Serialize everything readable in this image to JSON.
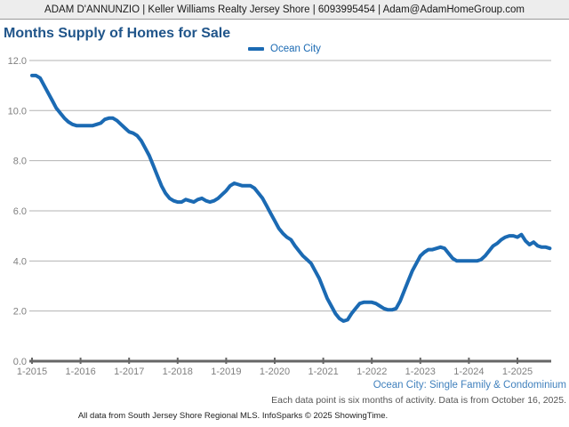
{
  "header": {
    "text": "ADAM D'ANNUNZIO | Keller Williams Realty Jersey Shore | 6093995454 | Adam@AdamHomeGroup.com"
  },
  "title": "Months Supply of Homes for Sale",
  "legend": {
    "label": "Ocean City"
  },
  "footer": {
    "series_note": "Ocean City: Single Family & Condominium",
    "data_note": "Each data point is six months of activity. Data is from October 16, 2025.",
    "attribution": "All data from South Jersey Shore Regional MLS. InfoSparks © 2025 ShowingTime."
  },
  "colors": {
    "line": "#1b6ab3",
    "title": "#20558a",
    "footer_blue": "#4181bd",
    "grid": "#b3b3b3",
    "axis": "#666666",
    "tick_label": "#808080"
  },
  "chart_data": {
    "type": "line",
    "title": "Months Supply of Homes for Sale",
    "series_name": "Ocean City",
    "x_start_month": "1-2015",
    "x_end_month": "9-2025",
    "x_tick_labels": [
      "1-2015",
      "1-2016",
      "1-2017",
      "1-2018",
      "1-2019",
      "1-2020",
      "1-2021",
      "1-2022",
      "1-2023",
      "1-2024",
      "1-2025"
    ],
    "yticks": [
      0,
      2,
      4,
      6,
      8,
      10,
      12
    ],
    "ylim": [
      0,
      12
    ],
    "grid": true,
    "legend_position": "top-center",
    "note": "monthly points, each point = six months of activity",
    "values": [
      11.4,
      11.4,
      11.3,
      11.0,
      10.7,
      10.4,
      10.1,
      9.9,
      9.7,
      9.55,
      9.45,
      9.4,
      9.4,
      9.4,
      9.4,
      9.4,
      9.45,
      9.5,
      9.65,
      9.7,
      9.7,
      9.6,
      9.45,
      9.3,
      9.15,
      9.1,
      9.0,
      8.8,
      8.5,
      8.2,
      7.8,
      7.4,
      7.0,
      6.7,
      6.5,
      6.4,
      6.35,
      6.35,
      6.45,
      6.4,
      6.35,
      6.45,
      6.5,
      6.4,
      6.35,
      6.4,
      6.5,
      6.65,
      6.8,
      7.0,
      7.1,
      7.05,
      7.0,
      7.0,
      7.0,
      6.9,
      6.7,
      6.5,
      6.2,
      5.9,
      5.6,
      5.3,
      5.1,
      4.95,
      4.85,
      4.6,
      4.4,
      4.2,
      4.05,
      3.9,
      3.6,
      3.3,
      2.9,
      2.5,
      2.2,
      1.9,
      1.7,
      1.6,
      1.65,
      1.9,
      2.1,
      2.3,
      2.35,
      2.35,
      2.35,
      2.3,
      2.2,
      2.1,
      2.05,
      2.05,
      2.1,
      2.4,
      2.8,
      3.2,
      3.6,
      3.9,
      4.2,
      4.35,
      4.45,
      4.45,
      4.5,
      4.55,
      4.5,
      4.3,
      4.1,
      4.0,
      4.0,
      4.0,
      4.0,
      4.0,
      4.0,
      4.05,
      4.2,
      4.4,
      4.6,
      4.7,
      4.85,
      4.95,
      5.0,
      5.0,
      4.95,
      5.05,
      4.8,
      4.65,
      4.75,
      4.6,
      4.55,
      4.55,
      4.5
    ]
  }
}
